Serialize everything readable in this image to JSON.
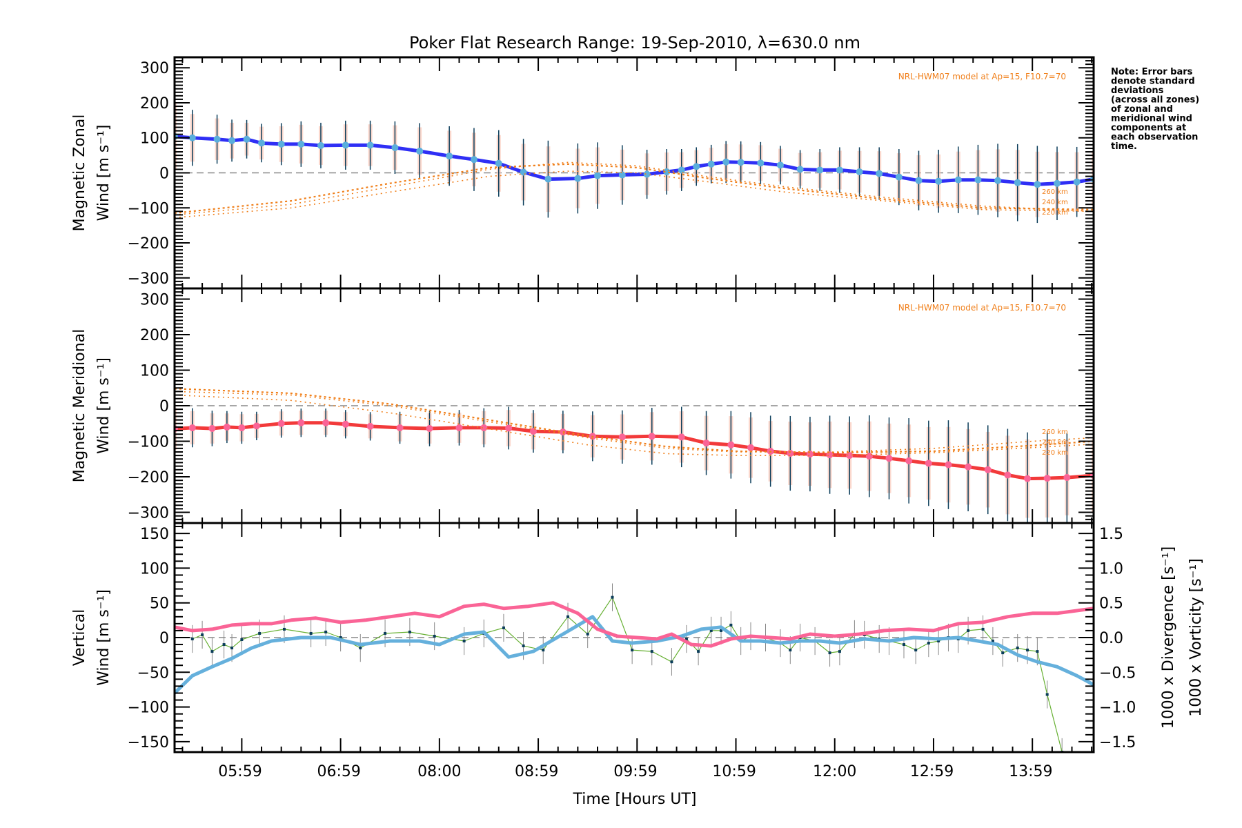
{
  "chart_data": {
    "type": "line",
    "title": "Poker Flat Research Range: 19-Sep-2010, λ=630.0 nm",
    "xlabel": "Time [Hours UT]",
    "x_tick_labels": [
      "05:59",
      "06:59",
      "08:00",
      "08:59",
      "09:59",
      "10:59",
      "12:00",
      "12:59",
      "13:59"
    ],
    "x_range_hours": [
      5.32,
      14.62
    ],
    "note": [
      "Note: Error bars",
      "denote standard",
      "deviations",
      "(across all zones)",
      "of zonal and",
      "meridional wind",
      "components at",
      "each observation",
      "time."
    ],
    "panels": [
      {
        "name": "zonal",
        "ylabel_line1": "Magnetic Zonal",
        "ylabel_line2": "Wind [m s⁻¹]",
        "ylim": [
          -330,
          330
        ],
        "y_ticks": [
          300,
          200,
          100,
          0,
          -100,
          -200,
          -300
        ],
        "y_tick_labels": [
          "300",
          "200",
          "100",
          "0",
          "−100",
          "−200",
          "−300"
        ],
        "model_note": "NRL-HWM07 model at Ap=15, F10.7=70",
        "model_alt_labels": [
          "260 km",
          "240 km",
          "220 km"
        ],
        "series": [
          {
            "name": "Zonal wind",
            "color": "#2f2ff5",
            "x": [
              5.32,
              5.5,
              5.75,
              5.9,
              6.05,
              6.2,
              6.4,
              6.6,
              6.8,
              7.05,
              7.3,
              7.55,
              7.8,
              8.1,
              8.35,
              8.6,
              8.85,
              9.1,
              9.4,
              9.6,
              9.85,
              10.1,
              10.3,
              10.45,
              10.6,
              10.75,
              10.9,
              11.05,
              11.25,
              11.45,
              11.65,
              11.85,
              12.05,
              12.25,
              12.45,
              12.65,
              12.85,
              13.05,
              13.25,
              13.45,
              13.65,
              13.85,
              14.05,
              14.25,
              14.45,
              14.62
            ],
            "y": [
              104,
              100,
              96,
              92,
              96,
              85,
              82,
              82,
              78,
              79,
              79,
              72,
              62,
              48,
              38,
              27,
              2,
              -18,
              -16,
              -8,
              -6,
              -4,
              3,
              8,
              18,
              25,
              31,
              30,
              28,
              22,
              10,
              8,
              8,
              3,
              -2,
              -12,
              -22,
              -24,
              -20,
              -20,
              -22,
              -28,
              -33,
              -30,
              -26,
              -18
            ],
            "err": [
              110,
              80,
              70,
              60,
              55,
              55,
              60,
              65,
              65,
              70,
              70,
              75,
              80,
              85,
              90,
              95,
              95,
              110,
              100,
              95,
              85,
              70,
              65,
              60,
              55,
              55,
              60,
              60,
              60,
              55,
              55,
              60,
              65,
              70,
              75,
              80,
              85,
              90,
              95,
              100,
              105,
              110,
              110,
              105,
              100,
              90
            ]
          },
          {
            "name": "HWM07 260 km",
            "color": "#f07f1a",
            "x": [
              5.32,
              6.5,
              7.5,
              8.5,
              9.3,
              10.0,
              10.7,
              11.5,
              12.5,
              13.5,
              14.62
            ],
            "y": [
              -120,
              -90,
              -40,
              10,
              30,
              20,
              -10,
              -40,
              -70,
              -95,
              -110
            ]
          },
          {
            "name": "HWM07 240 km",
            "color": "#f07f1a",
            "x": [
              5.32,
              6.5,
              7.5,
              8.5,
              9.3,
              10.0,
              10.7,
              11.5,
              12.5,
              13.5,
              14.62
            ],
            "y": [
              -115,
              -80,
              -30,
              15,
              25,
              15,
              -15,
              -45,
              -75,
              -100,
              -105
            ]
          },
          {
            "name": "HWM07 220 km",
            "color": "#f07f1a",
            "x": [
              5.32,
              6.5,
              7.5,
              8.5,
              9.3,
              10.0,
              10.7,
              11.5,
              12.5,
              13.5,
              14.62
            ],
            "y": [
              -128,
              -100,
              -55,
              -10,
              5,
              0,
              -25,
              -55,
              -80,
              -105,
              -110
            ]
          }
        ]
      },
      {
        "name": "meridional",
        "ylabel_line1": "Magnetic Meridional",
        "ylabel_line2": "Wind [m s⁻¹]",
        "ylim": [
          -330,
          330
        ],
        "y_ticks": [
          300,
          200,
          100,
          0,
          -100,
          -200,
          -300
        ],
        "y_tick_labels": [
          "300",
          "200",
          "100",
          "0",
          "−100",
          "−200",
          "−300"
        ],
        "model_note": "NRL-HWM07 model at Ap=15, F10.7=70",
        "model_alt_labels": [
          "260 km",
          "240 km",
          "220 km"
        ],
        "series": [
          {
            "name": "Meridional wind",
            "color": "#f23a3a",
            "x": [
              5.32,
              5.5,
              5.7,
              5.85,
              6.0,
              6.15,
              6.4,
              6.6,
              6.85,
              7.05,
              7.3,
              7.6,
              7.9,
              8.2,
              8.45,
              8.7,
              8.95,
              9.25,
              9.55,
              9.85,
              10.15,
              10.45,
              10.7,
              10.95,
              11.15,
              11.35,
              11.55,
              11.75,
              11.95,
              12.15,
              12.35,
              12.55,
              12.75,
              12.95,
              13.15,
              13.35,
              13.55,
              13.75,
              13.95,
              14.15,
              14.35,
              14.62
            ],
            "y": [
              -65,
              -62,
              -64,
              -60,
              -62,
              -57,
              -50,
              -48,
              -48,
              -52,
              -58,
              -62,
              -64,
              -62,
              -62,
              -63,
              -72,
              -74,
              -86,
              -88,
              -86,
              -88,
              -105,
              -110,
              -118,
              -128,
              -134,
              -136,
              -138,
              -140,
              -142,
              -148,
              -155,
              -162,
              -166,
              -172,
              -180,
              -195,
              -205,
              -204,
              -202,
              -196
            ],
            "err": [
              70,
              55,
              50,
              45,
              45,
              40,
              40,
              40,
              40,
              40,
              40,
              45,
              50,
              50,
              55,
              60,
              60,
              60,
              70,
              75,
              80,
              85,
              90,
              95,
              100,
              100,
              105,
              105,
              110,
              110,
              115,
              115,
              120,
              120,
              125,
              125,
              125,
              130,
              130,
              130,
              125,
              120
            ]
          },
          {
            "name": "HWM07 260 km",
            "color": "#f07f1a",
            "x": [
              5.32,
              6.5,
              7.5,
              8.5,
              9.5,
              10.3,
              11.0,
              12.0,
              13.0,
              14.0,
              14.62
            ],
            "y": [
              40,
              30,
              0,
              -45,
              -90,
              -120,
              -130,
              -130,
              -120,
              -100,
              -90
            ]
          },
          {
            "name": "HWM07 240 km",
            "color": "#f07f1a",
            "x": [
              5.32,
              6.5,
              7.5,
              8.5,
              9.5,
              10.3,
              11.0,
              12.0,
              13.0,
              14.0,
              14.62
            ],
            "y": [
              48,
              35,
              5,
              -40,
              -85,
              -115,
              -128,
              -132,
              -128,
              -112,
              -100
            ]
          },
          {
            "name": "HWM07 220 km",
            "color": "#f07f1a",
            "x": [
              5.32,
              6.5,
              7.5,
              8.5,
              9.5,
              10.3,
              11.0,
              12.0,
              13.0,
              14.0,
              14.62
            ],
            "y": [
              30,
              15,
              -20,
              -65,
              -110,
              -135,
              -140,
              -140,
              -132,
              -118,
              -108
            ]
          }
        ]
      },
      {
        "name": "vertical",
        "ylabel_line1": "Vertical",
        "ylabel_line2": "Wind [m s⁻¹]",
        "ylabel_color": "#66b032",
        "ylim": [
          -165,
          165
        ],
        "y_ticks": [
          150,
          100,
          50,
          0,
          -50,
          -100,
          -150
        ],
        "y_tick_labels": [
          "150",
          "100",
          "50",
          "0",
          "−50",
          "−100",
          "−150"
        ],
        "y2_ticks": [
          1.5,
          1.0,
          0.5,
          0.0,
          -0.5,
          -1.0,
          -1.5
        ],
        "y2_tick_labels": [
          "1.5",
          "1.0",
          "0.5",
          "0.0",
          "−0.5",
          "−1.0",
          "−1.5"
        ],
        "y2_label_div": "1000 x Divergence [s⁻¹]",
        "y2_label_vort": "1000 x Vorticity [s⁻¹]",
        "y2_div_color": "#65b0dc",
        "y2_vort_color": "#fa6496",
        "series": [
          {
            "name": "Vertical wind",
            "color": "#66b032",
            "x": [
              5.5,
              5.6,
              5.7,
              5.82,
              5.9,
              6.0,
              6.18,
              6.43,
              6.7,
              6.85,
              7.0,
              7.2,
              7.45,
              7.7,
              7.95,
              8.25,
              8.45,
              8.65,
              8.85,
              9.05,
              9.3,
              9.5,
              9.75,
              9.95,
              10.15,
              10.35,
              10.5,
              10.62,
              10.75,
              10.85,
              10.95,
              11.05,
              11.15,
              11.3,
              11.45,
              11.55,
              11.65,
              11.8,
              11.95,
              12.05,
              12.2,
              12.3,
              12.45,
              12.55,
              12.7,
              12.82,
              12.95,
              13.05,
              13.15,
              13.25,
              13.35,
              13.5,
              13.6,
              13.7,
              13.85,
              13.95,
              14.05,
              14.15,
              14.3
            ],
            "y": [
              -2,
              4,
              -20,
              -10,
              -15,
              -3,
              6,
              12,
              6,
              8,
              0,
              -15,
              6,
              8,
              2,
              -5,
              6,
              14,
              -12,
              -18,
              30,
              5,
              58,
              -18,
              -20,
              -35,
              -2,
              -20,
              10,
              10,
              18,
              -5,
              2,
              0,
              -8,
              -18,
              0,
              -5,
              -22,
              -20,
              5,
              4,
              -2,
              -5,
              -10,
              -18,
              -8,
              -5,
              0,
              -2,
              10,
              12,
              -5,
              -22,
              -15,
              -18,
              -20,
              -82,
              -165
            ],
            "err": [
              20,
              20,
              20,
              20,
              20,
              20,
              20,
              20,
              20,
              20,
              20,
              20,
              20,
              20,
              20,
              20,
              20,
              20,
              20,
              20,
              20,
              20,
              20,
              20,
              20,
              20,
              20,
              20,
              20,
              20,
              20,
              20,
              20,
              20,
              20,
              20,
              20,
              20,
              20,
              20,
              20,
              20,
              20,
              20,
              20,
              20,
              20,
              20,
              20,
              20,
              20,
              20,
              20,
              20,
              20,
              20,
              20,
              20,
              20
            ]
          },
          {
            "name": "1000 x Divergence",
            "color": "#65b0dc",
            "axis": "right",
            "x": [
              5.32,
              5.5,
              5.7,
              5.9,
              6.1,
              6.3,
              6.6,
              6.9,
              7.2,
              7.5,
              7.8,
              8.0,
              8.25,
              8.45,
              8.7,
              8.95,
              9.25,
              9.55,
              9.75,
              9.95,
              10.2,
              10.45,
              10.65,
              10.85,
              11.05,
              11.25,
              11.45,
              11.65,
              11.85,
              12.05,
              12.3,
              12.55,
              12.8,
              13.05,
              13.25,
              13.45,
              13.65,
              13.85,
              14.05,
              14.25,
              14.45,
              14.62
            ],
            "y": [
              -0.8,
              -0.55,
              -0.42,
              -0.3,
              -0.15,
              -0.05,
              0.0,
              0.0,
              -0.1,
              -0.05,
              -0.05,
              -0.1,
              0.05,
              0.08,
              -0.28,
              -0.2,
              0.05,
              0.3,
              -0.05,
              -0.08,
              -0.05,
              0.02,
              0.12,
              0.15,
              -0.05,
              -0.05,
              -0.08,
              -0.05,
              -0.05,
              -0.08,
              -0.02,
              -0.05,
              0.0,
              -0.02,
              0.0,
              -0.05,
              -0.1,
              -0.25,
              -0.35,
              -0.42,
              -0.55,
              -0.68
            ]
          },
          {
            "name": "1000 x Vorticity",
            "color": "#fa6496",
            "axis": "right",
            "x": [
              5.32,
              5.5,
              5.7,
              5.9,
              6.1,
              6.3,
              6.5,
              6.75,
              7.0,
              7.25,
              7.5,
              7.75,
              8.0,
              8.25,
              8.45,
              8.65,
              8.9,
              9.15,
              9.4,
              9.6,
              9.8,
              10.0,
              10.2,
              10.35,
              10.55,
              10.75,
              10.95,
              11.15,
              11.35,
              11.55,
              11.75,
              12.0,
              12.25,
              12.5,
              12.75,
              13.0,
              13.25,
              13.5,
              13.75,
              14.0,
              14.25,
              14.62
            ],
            "y": [
              0.15,
              0.1,
              0.12,
              0.18,
              0.2,
              0.2,
              0.25,
              0.28,
              0.22,
              0.25,
              0.3,
              0.35,
              0.3,
              0.45,
              0.48,
              0.42,
              0.45,
              0.5,
              0.35,
              0.12,
              0.02,
              0.0,
              -0.02,
              0.05,
              -0.1,
              -0.12,
              -0.02,
              0.02,
              0.0,
              -0.02,
              0.05,
              0.02,
              0.05,
              0.1,
              0.12,
              0.1,
              0.2,
              0.22,
              0.3,
              0.35,
              0.35,
              0.42
            ]
          }
        ]
      }
    ]
  }
}
